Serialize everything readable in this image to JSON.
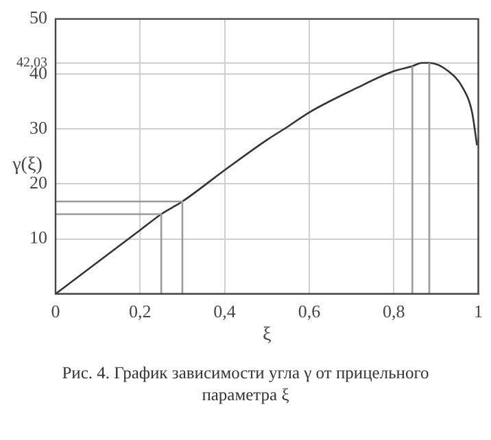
{
  "chart_data": {
    "type": "line",
    "xlabel": "ξ",
    "ylabel": "γ(ξ)",
    "annotations": [
      "Рис. 4. График зависимости угла γ от прицельного параметра ξ"
    ],
    "series": [
      {
        "color": "#333333",
        "x": [
          0,
          0.1,
          0.2,
          0.25,
          0.3,
          0.4,
          0.5,
          0.545,
          0.6,
          0.714,
          0.8,
          0.844,
          0.866,
          0.884,
          0.929,
          0.963,
          0.985,
          0.997
        ],
        "values": [
          0,
          5.8,
          11.6,
          14.5,
          16.8,
          22.5,
          28,
          30.2,
          33,
          37.5,
          40.5,
          41.4,
          42,
          42,
          40.5,
          37.5,
          33.1,
          27
        ]
      },
      {
        "color": "#9a9a9a",
        "x": [
          0,
          0.25,
          0.25
        ],
        "values": [
          14.5,
          14.5,
          0
        ]
      },
      {
        "color": "#9a9a9a",
        "x": [
          0,
          0.3,
          0.3
        ],
        "values": [
          16.8,
          16.8,
          0
        ]
      },
      {
        "color": "#9a9a9a",
        "x": [
          0.844,
          0.844
        ],
        "values": [
          0,
          41.4
        ]
      },
      {
        "color": "#9a9a9a",
        "x": [
          0.884,
          0.884
        ],
        "values": [
          0,
          42
        ]
      }
    ],
    "xlim": [
      0,
      1
    ],
    "ylim": [
      0,
      50
    ],
    "xticks": [
      0,
      {
        "value": 0.2,
        "label": "0,2"
      },
      {
        "value": 0.4,
        "label": "0,4"
      },
      {
        "value": 0.6,
        "label": "0,6"
      },
      {
        "value": 0.8,
        "label": "0,8"
      },
      1
    ],
    "yticks": [
      10,
      20,
      30,
      40,
      {
        "value": 42.03,
        "label": "42,03"
      },
      50
    ],
    "grid": true,
    "legend": false,
    "marker": "none",
    "line_style": "solid"
  }
}
